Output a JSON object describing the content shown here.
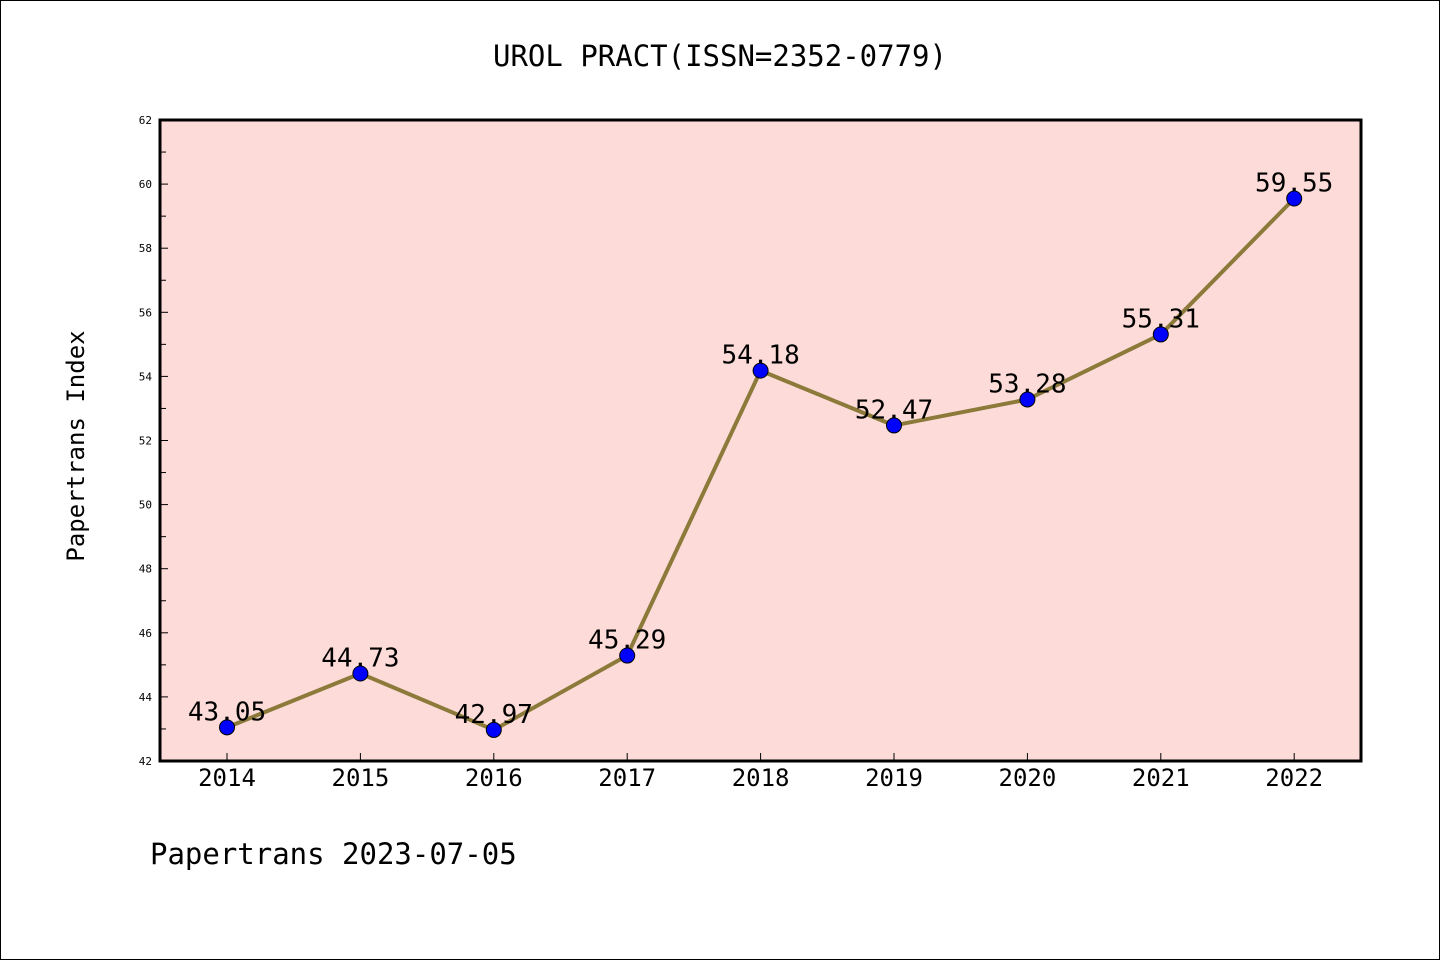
{
  "chart_data": {
    "type": "line",
    "title": "UROL PRACT(ISSN=2352-0779)",
    "xlabel": "",
    "ylabel": "Papertrans Index",
    "categories": [
      "2014",
      "2015",
      "2016",
      "2017",
      "2018",
      "2019",
      "2020",
      "2021",
      "2022"
    ],
    "series": [
      {
        "values": [
          43.05,
          44.73,
          42.97,
          45.29,
          54.18,
          52.47,
          53.28,
          55.31,
          59.55
        ]
      }
    ],
    "data_labels": [
      "43.05",
      "44.73",
      "42.97",
      "45.29",
      "54.18",
      "52.47",
      "53.28",
      "55.31",
      "59.55"
    ],
    "ylim": [
      42,
      62
    ],
    "yticks": [
      "42",
      "44",
      "46",
      "48",
      "50",
      "52",
      "54",
      "56",
      "58",
      "60",
      "62"
    ],
    "grid": false,
    "colors": {
      "plot_background": "#fddbd8",
      "line": "#8b7a3a",
      "marker": "#0000ff"
    }
  },
  "footer": "Papertrans 2023-07-05"
}
